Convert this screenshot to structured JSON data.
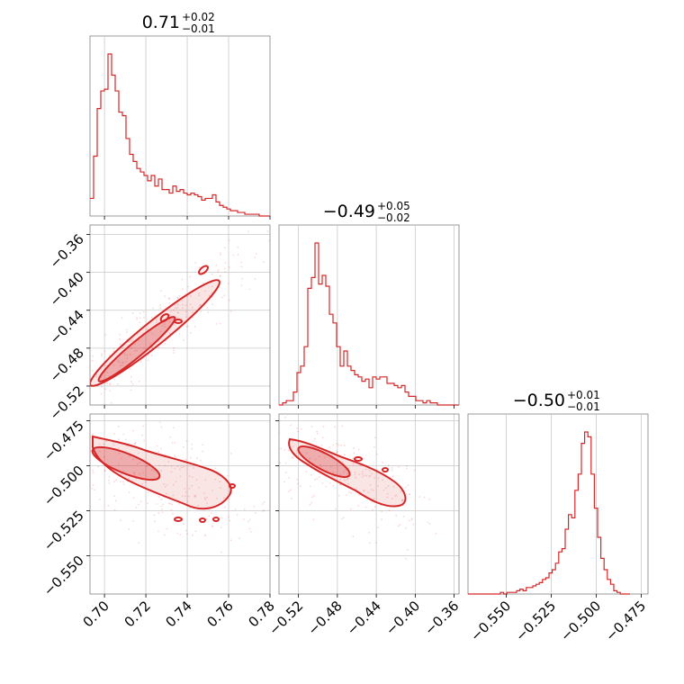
{
  "chart_data": {
    "type": "corner",
    "color": "#d62728",
    "panels": {
      "param1": {
        "title": {
          "value": "0.71",
          "upper": "+0.02",
          "lower": "−0.01"
        },
        "xlim": [
          0.693,
          0.78
        ],
        "xticks": [
          0.7,
          0.72,
          0.74,
          0.76,
          0.78
        ],
        "xtick_labels": [
          "0.70",
          "0.72",
          "0.74",
          "0.76",
          "0.78"
        ],
        "hist_edges_start": 0.693,
        "hist_bin_width": 0.00174,
        "hist_counts": [
          10,
          34,
          61,
          71,
          72,
          92,
          80,
          71,
          59,
          57,
          44,
          35,
          31,
          27,
          25,
          23,
          20,
          23,
          17,
          21,
          15,
          15,
          13,
          17,
          14,
          15,
          13,
          12,
          13,
          12,
          11,
          9,
          10,
          10,
          12,
          8,
          6,
          5,
          4,
          3,
          3,
          2,
          2,
          1,
          1,
          1,
          1,
          0,
          0,
          0
        ]
      },
      "param2": {
        "title": {
          "value": "−0.49",
          "upper": "+0.05",
          "lower": "−0.02"
        },
        "xlim": [
          -0.54,
          -0.355
        ],
        "xticks": [
          -0.52,
          -0.48,
          -0.44,
          -0.4,
          -0.36
        ],
        "xtick_labels": [
          "−0.52",
          "−0.48",
          "−0.44",
          "−0.40",
          "−0.36"
        ],
        "hist_edges_start": -0.54,
        "hist_bin_width": 0.0037,
        "hist_counts": [
          0,
          1,
          2,
          2,
          6,
          15,
          18,
          27,
          54,
          59,
          75,
          56,
          60,
          55,
          42,
          38,
          27,
          18,
          25,
          18,
          16,
          14,
          13,
          11,
          12,
          8,
          13,
          12,
          13,
          13,
          10,
          10,
          9,
          8,
          9,
          6,
          4,
          4,
          2,
          2,
          1,
          2,
          1,
          1,
          0,
          0,
          0,
          0,
          0,
          0
        ]
      },
      "param3": {
        "title": {
          "value": "−0.50",
          "upper": "+0.01",
          "lower": "−0.01"
        },
        "xlim": [
          -0.5712,
          -0.4712
        ],
        "xticks": [
          -0.55,
          -0.525,
          -0.5,
          -0.475
        ],
        "xtick_labels": [
          "−0.550",
          "−0.525",
          "−0.500",
          "−0.475"
        ],
        "hist_edges_start": -0.5712,
        "hist_bin_width": 0.0018,
        "hist_counts": [
          0,
          0,
          0,
          0,
          0,
          0,
          0,
          0,
          0,
          0,
          1,
          0,
          1,
          1,
          1,
          2,
          3,
          2,
          4,
          4,
          5,
          6,
          7,
          9,
          10,
          13,
          15,
          19,
          26,
          28,
          40,
          49,
          47,
          64,
          74,
          93,
          100,
          97,
          74,
          53,
          35,
          22,
          15,
          9,
          6,
          2,
          1,
          0,
          0,
          0
        ]
      }
    },
    "yaxis": {
      "param2": {
        "ylim": [
          -0.54,
          -0.35
        ],
        "yticks": [
          -0.36,
          -0.4,
          -0.44,
          -0.48,
          -0.52
        ],
        "ytick_labels": [
          "−0.36",
          "−0.40",
          "−0.44",
          "−0.48",
          "−0.52"
        ]
      },
      "param3": {
        "ylim": [
          -0.5712,
          -0.4712
        ],
        "yticks": [
          -0.475,
          -0.5,
          -0.525,
          -0.55
        ],
        "ytick_labels": [
          "−0.475",
          "−0.500",
          "−0.525",
          "−0.550"
        ]
      }
    },
    "grid": true
  }
}
